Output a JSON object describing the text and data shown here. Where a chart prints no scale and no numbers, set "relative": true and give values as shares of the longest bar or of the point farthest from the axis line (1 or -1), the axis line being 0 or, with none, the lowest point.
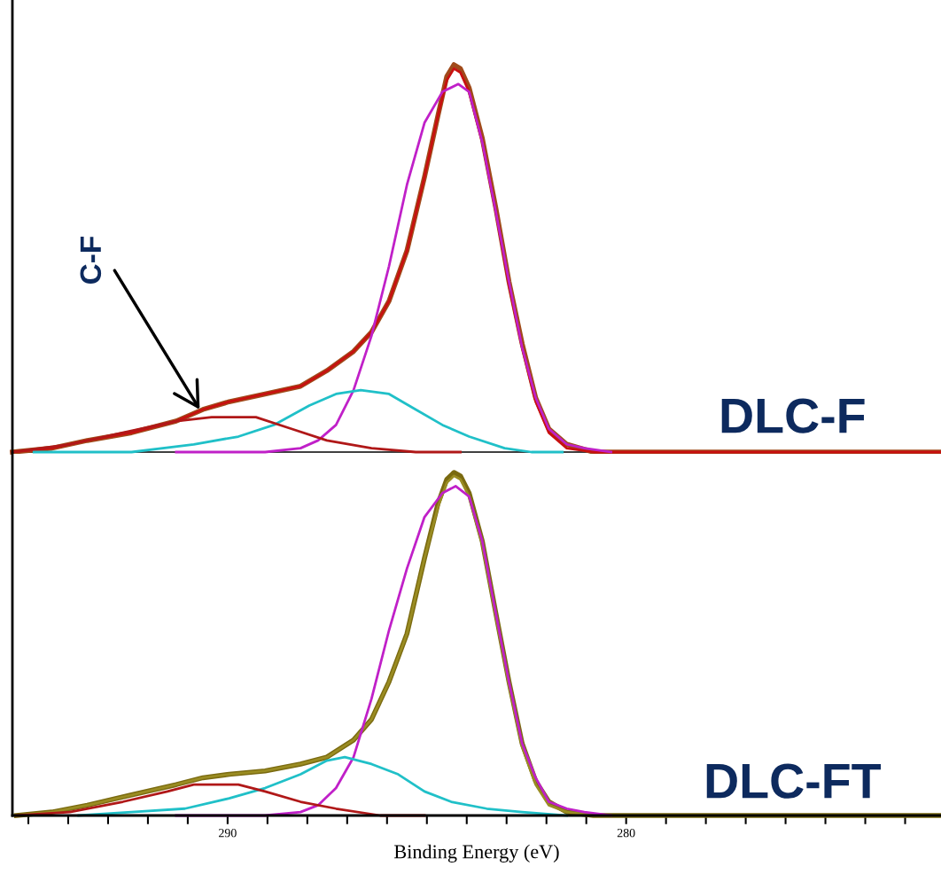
{
  "chart_data": [
    {
      "type": "line",
      "relative": true,
      "xlim": [
        295.4,
        272.1
      ],
      "tick_labels": false,
      "legend": false,
      "grid": false,
      "annotations": [
        {
          "text": "C-F",
          "x": 290.7,
          "y": 0.11
        },
        "DLC-F"
      ],
      "series": [
        {
          "color": "#a04a1a",
          "x": [
            295.4,
            294.41,
            293.52,
            292.41,
            291.29,
            290.62,
            289.96,
            289.06,
            288.17,
            287.51,
            286.84,
            286.39,
            285.95,
            285.5,
            285.06,
            284.72,
            284.5,
            284.32,
            284.16,
            283.94,
            283.61,
            283.27,
            282.94,
            282.61,
            282.27,
            281.94,
            281.49,
            280.82,
            279.71,
            272.1
          ],
          "values": [
            0,
            0.01,
            0.03,
            0.05,
            0.08,
            0.11,
            0.13,
            0.15,
            0.17,
            0.21,
            0.26,
            0.31,
            0.39,
            0.52,
            0.71,
            0.87,
            0.97,
            1,
            0.99,
            0.94,
            0.81,
            0.63,
            0.44,
            0.28,
            0.14,
            0.06,
            0.02,
            0,
            0,
            0
          ]
        },
        {
          "color": "#c81010",
          "x": [
            295.4,
            294.41,
            293.52,
            292.41,
            291.29,
            290.62,
            289.96,
            289.06,
            288.17,
            287.51,
            286.84,
            286.39,
            285.95,
            285.5,
            285.06,
            284.72,
            284.5,
            284.32,
            284.16,
            283.94,
            283.61,
            283.27,
            282.94,
            282.61,
            282.27,
            281.94,
            281.49,
            280.82,
            279.71,
            272.1
          ],
          "values": [
            0,
            0.01,
            0.03,
            0.05,
            0.08,
            0.11,
            0.13,
            0.15,
            0.17,
            0.21,
            0.26,
            0.31,
            0.39,
            0.52,
            0.71,
            0.87,
            0.96,
            0.99,
            0.98,
            0.93,
            0.8,
            0.62,
            0.43,
            0.27,
            0.13,
            0.05,
            0.01,
            0,
            0,
            0
          ]
        },
        {
          "color": "#c020c8",
          "x": [
            291.29,
            289.06,
            288.17,
            287.73,
            287.28,
            286.84,
            286.39,
            285.95,
            285.5,
            285.06,
            284.61,
            284.21,
            283.94,
            283.61,
            283.27,
            282.94,
            282.61,
            282.27,
            281.94,
            281.49,
            281.05,
            280.38
          ],
          "values": [
            0,
            0,
            0.01,
            0.03,
            0.07,
            0.16,
            0.3,
            0.48,
            0.69,
            0.85,
            0.93,
            0.95,
            0.93,
            0.8,
            0.62,
            0.44,
            0.27,
            0.14,
            0.06,
            0.02,
            0.01,
            0
          ]
        },
        {
          "color": "#20c0c8",
          "x": [
            294.86,
            292.41,
            290.85,
            289.73,
            288.84,
            287.95,
            287.28,
            286.66,
            285.95,
            285.28,
            284.61,
            283.94,
            283.05,
            282.38,
            281.6
          ],
          "values": [
            0,
            0,
            0.02,
            0.04,
            0.07,
            0.12,
            0.15,
            0.16,
            0.15,
            0.11,
            0.07,
            0.04,
            0.01,
            0,
            0
          ]
        },
        {
          "color": "#b01818",
          "x": [
            295.4,
            293.96,
            292.63,
            291.29,
            290.4,
            289.96,
            289.29,
            288.4,
            287.51,
            286.39,
            285.28,
            284.16
          ],
          "values": [
            0,
            0.02,
            0.05,
            0.08,
            0.09,
            0.09,
            0.09,
            0.06,
            0.03,
            0.01,
            0,
            0
          ]
        }
      ]
    },
    {
      "type": "line",
      "relative": true,
      "xlim": [
        295.4,
        272.1
      ],
      "tick_labels": "x",
      "legend": false,
      "grid": false,
      "xlabel": "Binding Energy (eV)",
      "xticks": [
        {
          "value": 295,
          "label": null
        },
        {
          "value": 294,
          "label": null
        },
        {
          "value": 293,
          "label": null
        },
        {
          "value": 292,
          "label": null
        },
        {
          "value": 291,
          "label": null
        },
        290,
        {
          "value": 289,
          "label": null
        },
        {
          "value": 288,
          "label": null
        },
        {
          "value": 287,
          "label": null
        },
        {
          "value": 286,
          "label": null
        },
        {
          "value": 285,
          "label": null
        },
        {
          "value": 284,
          "label": null
        },
        {
          "value": 283,
          "label": null
        },
        {
          "value": 282,
          "label": null
        },
        {
          "value": 281,
          "label": null
        },
        280,
        {
          "value": 279,
          "label": null
        },
        {
          "value": 278,
          "label": null
        },
        {
          "value": 277,
          "label": null
        },
        {
          "value": 276,
          "label": null
        },
        {
          "value": 275,
          "label": null
        },
        {
          "value": 274,
          "label": null
        },
        {
          "value": 273,
          "label": null
        }
      ],
      "annotations": [
        "DLC-FT"
      ],
      "series": [
        {
          "color": "#7a6a10",
          "x": [
            295.3,
            294.41,
            293.52,
            292.41,
            291.29,
            290.62,
            289.96,
            289.06,
            288.17,
            287.51,
            286.84,
            286.39,
            285.95,
            285.5,
            285.06,
            284.72,
            284.5,
            284.32,
            284.16,
            283.94,
            283.61,
            283.27,
            282.94,
            282.61,
            282.27,
            281.94,
            281.49,
            280.82,
            280.16,
            272.1
          ],
          "values": [
            0,
            0.01,
            0.03,
            0.06,
            0.09,
            0.11,
            0.12,
            0.13,
            0.15,
            0.17,
            0.22,
            0.28,
            0.39,
            0.53,
            0.75,
            0.91,
            0.98,
            1,
            0.99,
            0.94,
            0.8,
            0.59,
            0.39,
            0.21,
            0.1,
            0.04,
            0.01,
            0,
            0,
            0
          ]
        },
        {
          "color": "#9a8c22",
          "x": [
            295.3,
            294.41,
            293.52,
            292.41,
            291.29,
            290.62,
            289.96,
            289.06,
            288.17,
            287.51,
            286.84,
            286.39,
            285.95,
            285.5,
            285.06,
            284.72,
            284.5,
            284.32,
            284.16,
            283.94,
            283.61,
            283.27,
            282.94,
            282.61,
            282.27,
            281.94,
            281.49,
            280.82,
            280.16,
            272.1
          ],
          "values": [
            0,
            0.01,
            0.03,
            0.06,
            0.09,
            0.11,
            0.12,
            0.13,
            0.15,
            0.17,
            0.22,
            0.28,
            0.39,
            0.53,
            0.75,
            0.9,
            0.97,
            0.99,
            0.98,
            0.93,
            0.79,
            0.58,
            0.38,
            0.2,
            0.09,
            0.03,
            0.01,
            0,
            0,
            0
          ]
        },
        {
          "color": "#c020c8",
          "x": [
            291.29,
            289.06,
            288.17,
            287.73,
            287.28,
            286.84,
            286.39,
            285.95,
            285.5,
            285.06,
            284.61,
            284.28,
            283.94,
            283.61,
            283.27,
            282.94,
            282.61,
            282.27,
            281.94,
            281.49,
            281.05,
            280.38
          ],
          "values": [
            0,
            0,
            0.01,
            0.03,
            0.08,
            0.17,
            0.34,
            0.54,
            0.72,
            0.87,
            0.94,
            0.96,
            0.93,
            0.8,
            0.59,
            0.39,
            0.21,
            0.11,
            0.04,
            0.02,
            0.01,
            0
          ]
        },
        {
          "color": "#20c0c8",
          "x": [
            293.74,
            292.41,
            291.07,
            289.96,
            289.06,
            288.17,
            287.51,
            287.06,
            286.39,
            285.72,
            285.06,
            284.39,
            283.5,
            282.61,
            281.49
          ],
          "values": [
            0,
            0.01,
            0.02,
            0.05,
            0.08,
            0.12,
            0.16,
            0.17,
            0.15,
            0.12,
            0.07,
            0.04,
            0.02,
            0.01,
            0
          ]
        },
        {
          "color": "#b01818",
          "x": [
            295.3,
            293.96,
            292.63,
            291.51,
            290.85,
            290.4,
            289.73,
            289.06,
            288.17,
            287.28,
            286.17,
            285.06
          ],
          "values": [
            0,
            0.01,
            0.04,
            0.07,
            0.09,
            0.09,
            0.09,
            0.07,
            0.04,
            0.02,
            0,
            0
          ]
        }
      ]
    }
  ]
}
